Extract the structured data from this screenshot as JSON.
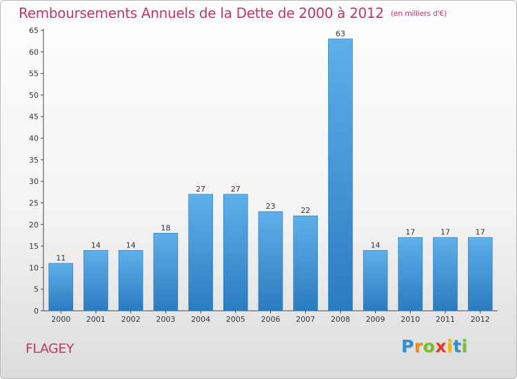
{
  "title": "Remboursements Annuels de la Dette de 2000 à 2012",
  "unit": "(en milliers d'€)",
  "commune": "FLAGEY",
  "logo": {
    "letters": [
      "P",
      "r",
      "o",
      "x",
      "i",
      "t",
      "i"
    ],
    "colors": [
      "#2f8fd1",
      "#f08a1c",
      "#7cbf2a",
      "#e63c2f",
      "#f2b705",
      "#2f8fd1",
      "#7cbf2a"
    ]
  },
  "colors": {
    "bar": "#3a8fd4",
    "bar_light": "#5eb0ea",
    "title": "#c0385f"
  },
  "chart_data": {
    "type": "bar",
    "title": "Remboursements Annuels de la Dette de 2000 à 2012",
    "xlabel": "",
    "ylabel": "",
    "categories": [
      "2000",
      "2001",
      "2002",
      "2003",
      "2004",
      "2005",
      "2006",
      "2007",
      "2008",
      "2009",
      "2010",
      "2011",
      "2012"
    ],
    "values": [
      11,
      14,
      14,
      18,
      27,
      27,
      23,
      22,
      63,
      14,
      17,
      17,
      17
    ],
    "ylim": [
      0,
      65
    ],
    "yticks": [
      0,
      5,
      10,
      15,
      20,
      25,
      30,
      35,
      40,
      45,
      50,
      55,
      60,
      65
    ],
    "grid": false,
    "data_labels": true
  }
}
